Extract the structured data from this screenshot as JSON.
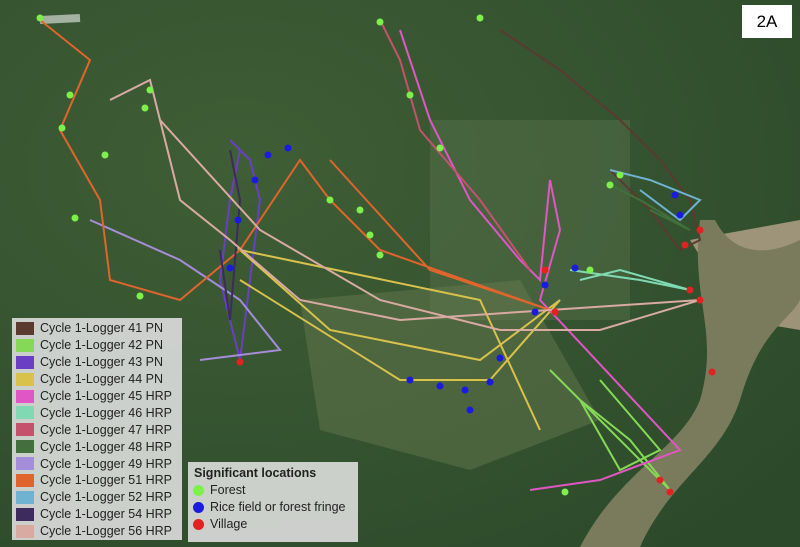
{
  "panel_label": "2A",
  "track_legend": {
    "items": [
      {
        "label": "Cycle 1-Logger 41 PN",
        "color": "#5b3a2f"
      },
      {
        "label": "Cycle 1-Logger 42 PN",
        "color": "#86d957"
      },
      {
        "label": "Cycle 1-Logger 43 PN",
        "color": "#6b3fc4"
      },
      {
        "label": "Cycle 1-Logger 44 PN",
        "color": "#d9c24c"
      },
      {
        "label": "Cycle 1-Logger 45 HRP",
        "color": "#e056c4"
      },
      {
        "label": "Cycle 1-Logger 46 HRP",
        "color": "#80d9b2"
      },
      {
        "label": "Cycle 1-Logger 47 HRP",
        "color": "#c4526c"
      },
      {
        "label": "Cycle 1-Logger 48 HRP",
        "color": "#426f3c"
      },
      {
        "label": "Cycle 1-Logger 49 HRP",
        "color": "#a48dd9"
      },
      {
        "label": "Cycle 1-Logger 51 HRP",
        "color": "#e0652c"
      },
      {
        "label": "Cycle 1-Logger 52 HRP",
        "color": "#70b2d2"
      },
      {
        "label": "Cycle 1-Logger 54 HRP",
        "color": "#3c2b5c"
      },
      {
        "label": "Cycle 1-Logger 56 HRP",
        "color": "#d9aaa2"
      }
    ]
  },
  "location_legend": {
    "title": "Significant locations",
    "items": [
      {
        "label": "Forest",
        "color": "#7df04c"
      },
      {
        "label": "Rice field or forest fringe",
        "color": "#1b1be0"
      },
      {
        "label": "Village",
        "color": "#e02222"
      }
    ]
  }
}
